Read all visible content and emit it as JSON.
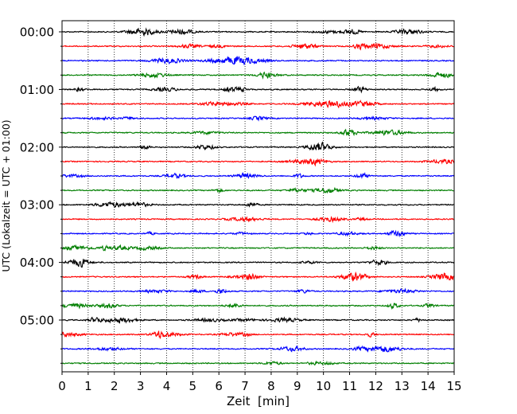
{
  "chart_data": {
    "type": "line",
    "title": "",
    "xlabel": "Zeit  [min]",
    "ylabel": "UTC (Lokalzeit = UTC + 01:00)",
    "xlim": [
      0,
      15
    ],
    "x_ticks": [
      "0",
      "1",
      "2",
      "3",
      "4",
      "5",
      "6",
      "7",
      "8",
      "9",
      "10",
      "11",
      "12",
      "13",
      "14",
      "15"
    ],
    "y_ticks": [
      "00:00",
      "01:00",
      "02:00",
      "03:00",
      "04:00",
      "05:00"
    ],
    "trace_interval_minutes": 15,
    "trace_start_times": [
      "00:00",
      "00:15",
      "00:30",
      "00:45",
      "01:00",
      "01:15",
      "01:30",
      "01:45",
      "02:00",
      "02:15",
      "02:30",
      "02:45",
      "03:00",
      "03:15",
      "03:30",
      "03:45",
      "04:00",
      "04:15",
      "04:30",
      "04:45",
      "05:00",
      "05:15",
      "05:30",
      "05:45"
    ],
    "trace_colors": [
      "#000000",
      "#ff0000",
      "#0000ff",
      "#007f00"
    ],
    "vertical_grid": "dotted",
    "horizontal_grid": false
  }
}
